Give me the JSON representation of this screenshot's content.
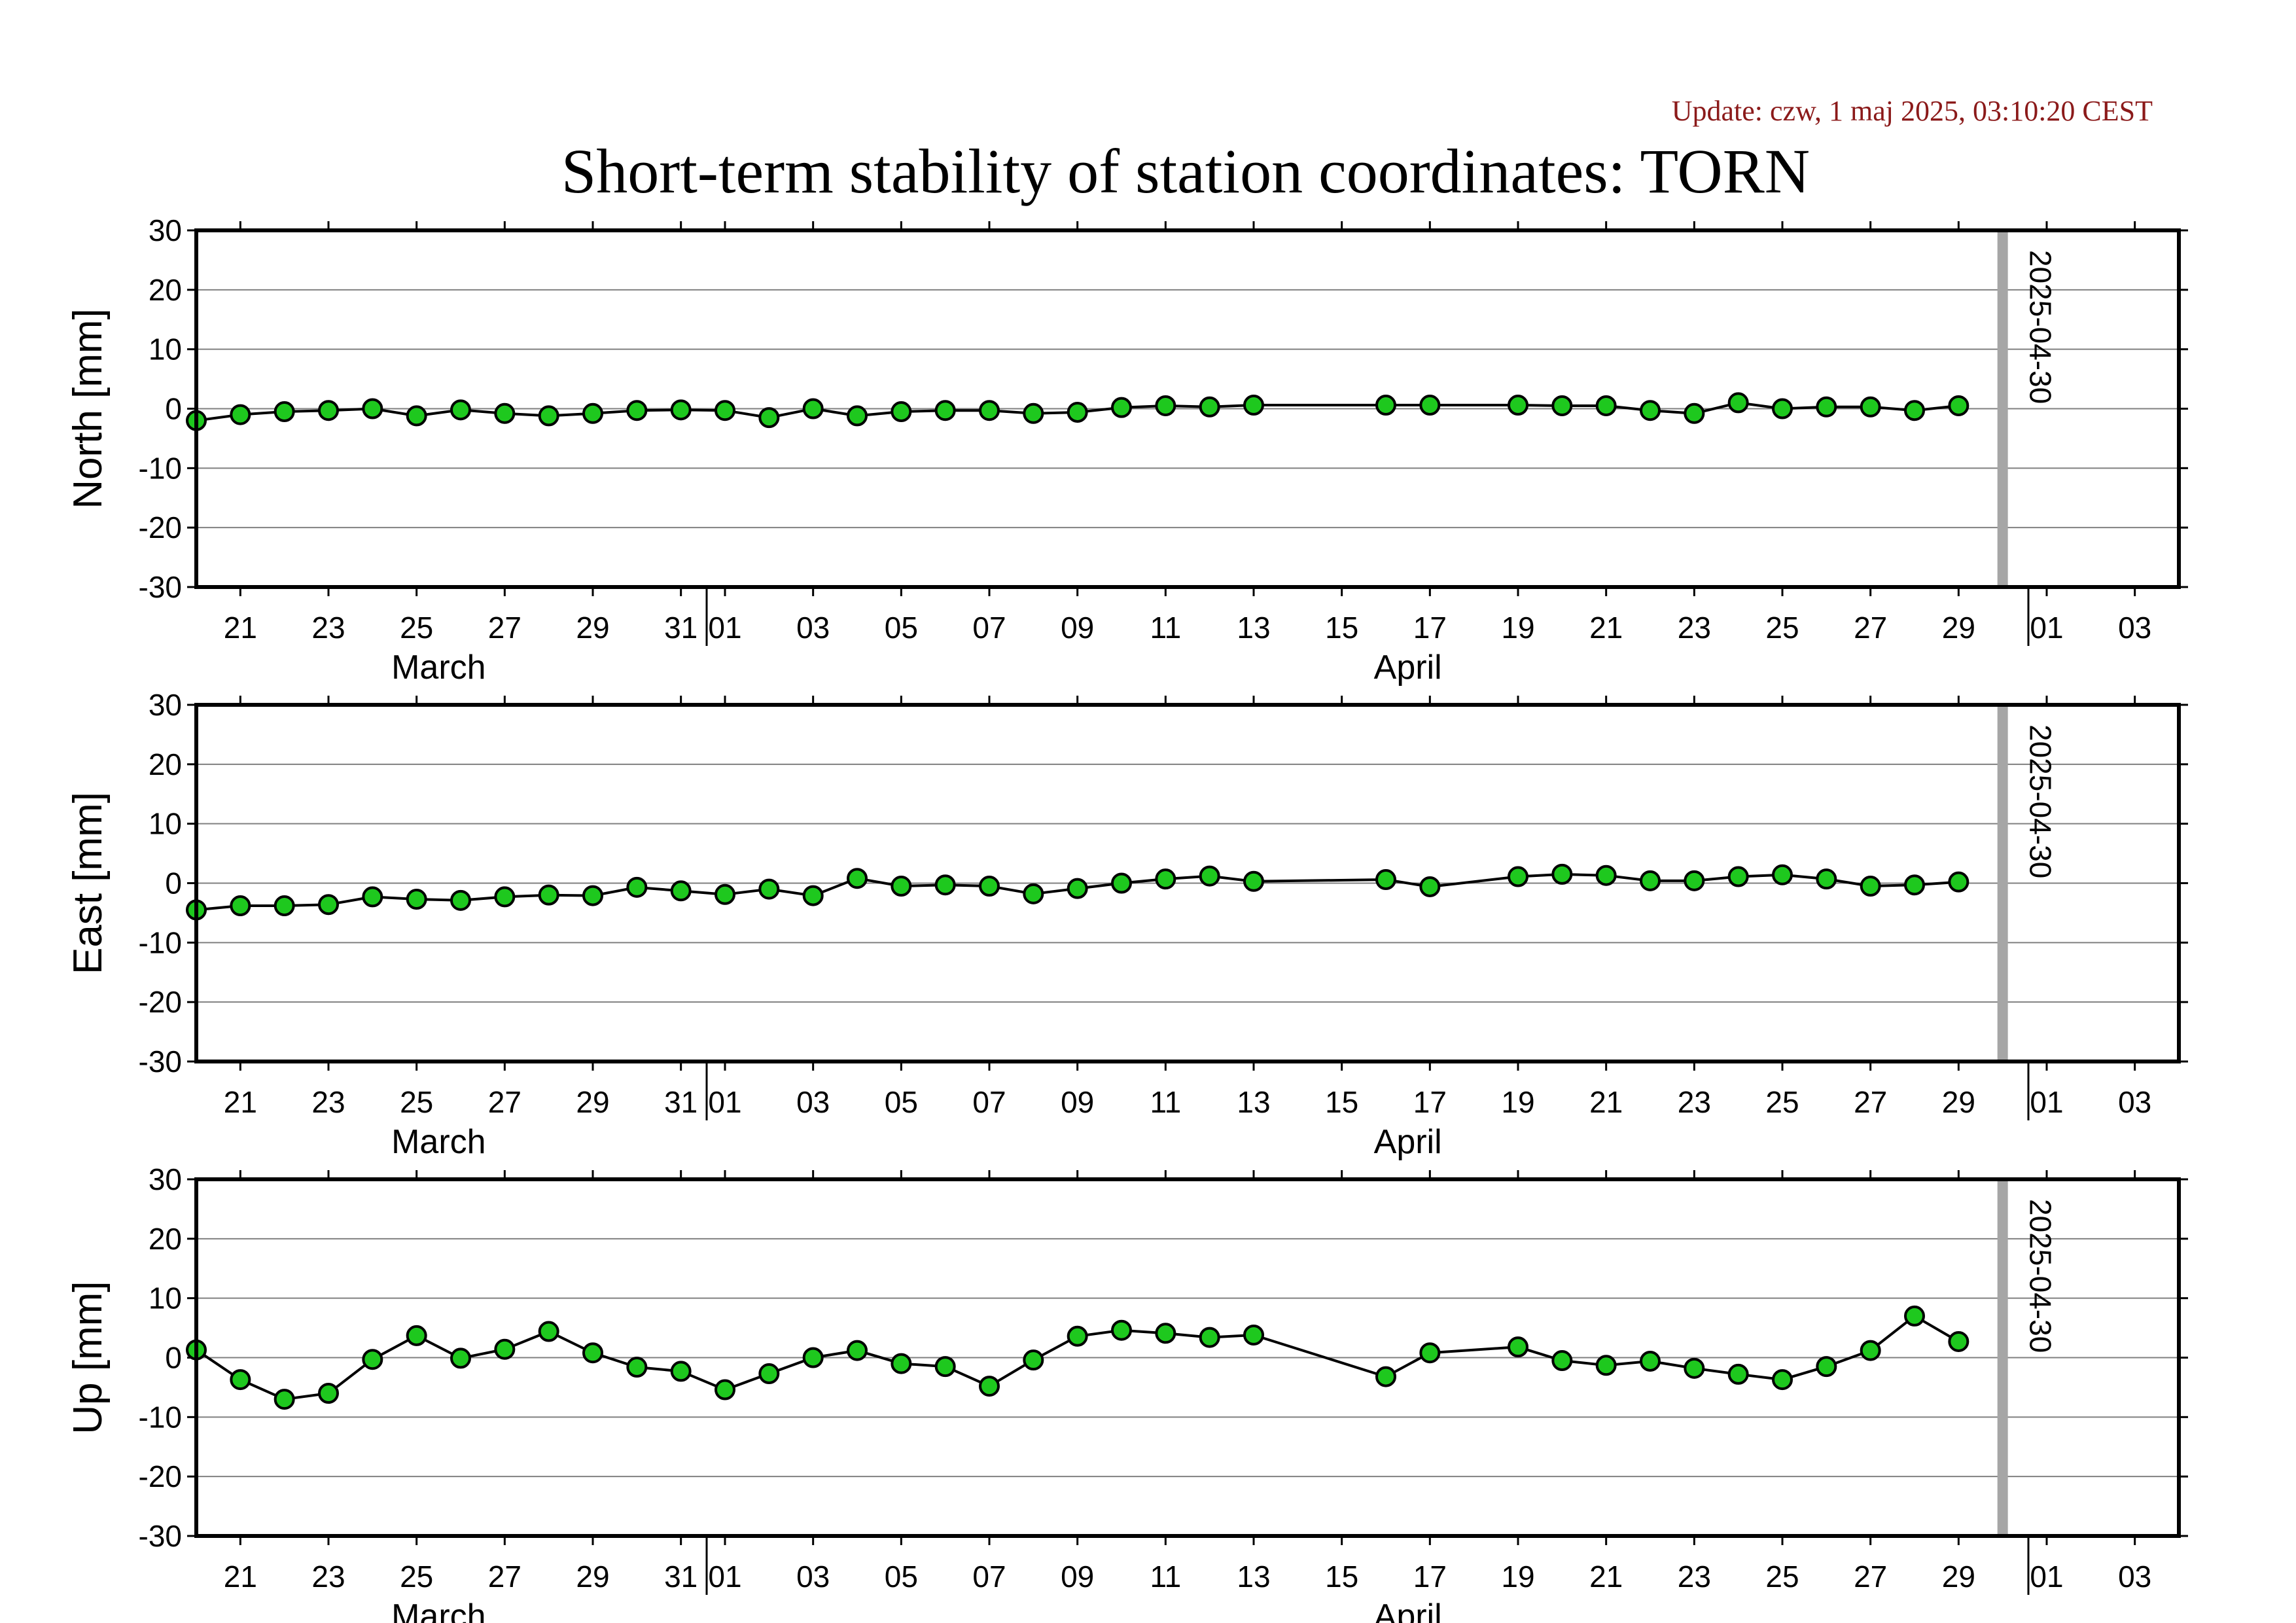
{
  "header": {
    "update": "Update: czw, 1 maj 2025, 03:10:20 CEST",
    "title": "Short-term stability of station coordinates: TORN"
  },
  "colors": {
    "point_fill": "#1ec81e",
    "line": "#000000",
    "marker_line": "#a6a6a6",
    "grid": "#808080"
  },
  "chart_data": {
    "type": "line",
    "x_unit": "date",
    "xlim": [
      "2025-03-20",
      "2025-05-04"
    ],
    "ylim": [
      -30,
      30
    ],
    "y_ticks": [
      30,
      20,
      10,
      0,
      -10,
      -20,
      -30
    ],
    "x_ticks": [
      {
        "date": "2025-03-21",
        "label": "21"
      },
      {
        "date": "2025-03-23",
        "label": "23"
      },
      {
        "date": "2025-03-25",
        "label": "25"
      },
      {
        "date": "2025-03-27",
        "label": "27"
      },
      {
        "date": "2025-03-29",
        "label": "29"
      },
      {
        "date": "2025-03-31",
        "label": "31"
      },
      {
        "date": "2025-04-01",
        "label": "01"
      },
      {
        "date": "2025-04-03",
        "label": "03"
      },
      {
        "date": "2025-04-05",
        "label": "05"
      },
      {
        "date": "2025-04-07",
        "label": "07"
      },
      {
        "date": "2025-04-09",
        "label": "09"
      },
      {
        "date": "2025-04-11",
        "label": "11"
      },
      {
        "date": "2025-04-13",
        "label": "13"
      },
      {
        "date": "2025-04-15",
        "label": "15"
      },
      {
        "date": "2025-04-17",
        "label": "17"
      },
      {
        "date": "2025-04-19",
        "label": "19"
      },
      {
        "date": "2025-04-21",
        "label": "21"
      },
      {
        "date": "2025-04-23",
        "label": "23"
      },
      {
        "date": "2025-04-25",
        "label": "25"
      },
      {
        "date": "2025-04-27",
        "label": "27"
      },
      {
        "date": "2025-04-29",
        "label": "29"
      },
      {
        "date": "2025-05-01",
        "label": "01"
      },
      {
        "date": "2025-05-03",
        "label": "03"
      }
    ],
    "months": [
      {
        "date": "2025-03-25.5",
        "label": "March"
      },
      {
        "date": "2025-04-16.5",
        "label": "April"
      }
    ],
    "month_boundaries": [
      "2025-04-01",
      "2025-05-01"
    ],
    "marker": {
      "date": "2025-04-30",
      "label": "2025-04-30"
    },
    "panels": [
      {
        "ylabel": "North [mm]",
        "points": [
          [
            "2025-03-20",
            -2.0
          ],
          [
            "2025-03-21",
            -1.0
          ],
          [
            "2025-03-22",
            -0.5
          ],
          [
            "2025-03-23",
            -0.3
          ],
          [
            "2025-03-24",
            0.0
          ],
          [
            "2025-03-25",
            -1.2
          ],
          [
            "2025-03-26",
            -0.2
          ],
          [
            "2025-03-27",
            -0.8
          ],
          [
            "2025-03-28",
            -1.2
          ],
          [
            "2025-03-29",
            -0.8
          ],
          [
            "2025-03-30",
            -0.3
          ],
          [
            "2025-03-31",
            -0.2
          ],
          [
            "2025-04-01",
            -0.3
          ],
          [
            "2025-04-02",
            -1.5
          ],
          [
            "2025-04-03",
            0.0
          ],
          [
            "2025-04-04",
            -1.2
          ],
          [
            "2025-04-05",
            -0.5
          ],
          [
            "2025-04-06",
            -0.3
          ],
          [
            "2025-04-07",
            -0.3
          ],
          [
            "2025-04-08",
            -0.8
          ],
          [
            "2025-04-09",
            -0.6
          ],
          [
            "2025-04-10",
            0.2
          ],
          [
            "2025-04-11",
            0.5
          ],
          [
            "2025-04-12",
            0.3
          ],
          [
            "2025-04-13",
            0.6
          ],
          [
            "2025-04-16",
            0.6
          ],
          [
            "2025-04-17",
            0.6
          ],
          [
            "2025-04-19",
            0.6
          ],
          [
            "2025-04-20",
            0.5
          ],
          [
            "2025-04-21",
            0.5
          ],
          [
            "2025-04-22",
            -0.3
          ],
          [
            "2025-04-23",
            -0.8
          ],
          [
            "2025-04-24",
            1.0
          ],
          [
            "2025-04-25",
            0.0
          ],
          [
            "2025-04-26",
            0.3
          ],
          [
            "2025-04-27",
            0.3
          ],
          [
            "2025-04-28",
            -0.3
          ],
          [
            "2025-04-29",
            0.5
          ]
        ]
      },
      {
        "ylabel": "East [mm]",
        "points": [
          [
            "2025-03-20",
            -4.5
          ],
          [
            "2025-03-21",
            -3.8
          ],
          [
            "2025-03-22",
            -3.8
          ],
          [
            "2025-03-23",
            -3.6
          ],
          [
            "2025-03-24",
            -2.3
          ],
          [
            "2025-03-25",
            -2.7
          ],
          [
            "2025-03-26",
            -2.9
          ],
          [
            "2025-03-27",
            -2.3
          ],
          [
            "2025-03-28",
            -2.0
          ],
          [
            "2025-03-29",
            -2.1
          ],
          [
            "2025-03-30",
            -0.7
          ],
          [
            "2025-03-31",
            -1.3
          ],
          [
            "2025-04-01",
            -1.9
          ],
          [
            "2025-04-02",
            -1.0
          ],
          [
            "2025-04-03",
            -2.1
          ],
          [
            "2025-04-04",
            0.8
          ],
          [
            "2025-04-05",
            -0.5
          ],
          [
            "2025-04-06",
            -0.3
          ],
          [
            "2025-04-07",
            -0.5
          ],
          [
            "2025-04-08",
            -1.8
          ],
          [
            "2025-04-09",
            -0.9
          ],
          [
            "2025-04-10",
            0.0
          ],
          [
            "2025-04-11",
            0.7
          ],
          [
            "2025-04-12",
            1.2
          ],
          [
            "2025-04-13",
            0.3
          ],
          [
            "2025-04-16",
            0.6
          ],
          [
            "2025-04-17",
            -0.6
          ],
          [
            "2025-04-19",
            1.1
          ],
          [
            "2025-04-20",
            1.5
          ],
          [
            "2025-04-21",
            1.3
          ],
          [
            "2025-04-22",
            0.4
          ],
          [
            "2025-04-23",
            0.4
          ],
          [
            "2025-04-24",
            1.1
          ],
          [
            "2025-04-25",
            1.4
          ],
          [
            "2025-04-26",
            0.7
          ],
          [
            "2025-04-27",
            -0.5
          ],
          [
            "2025-04-28",
            -0.3
          ],
          [
            "2025-04-29",
            0.2
          ]
        ]
      },
      {
        "ylabel": "Up [mm]",
        "points": [
          [
            "2025-03-20",
            1.3
          ],
          [
            "2025-03-21",
            -3.7
          ],
          [
            "2025-03-22",
            -7.0
          ],
          [
            "2025-03-23",
            -6.0
          ],
          [
            "2025-03-24",
            -0.3
          ],
          [
            "2025-03-25",
            3.7
          ],
          [
            "2025-03-26",
            -0.1
          ],
          [
            "2025-03-27",
            1.4
          ],
          [
            "2025-03-28",
            4.4
          ],
          [
            "2025-03-29",
            0.8
          ],
          [
            "2025-03-30",
            -1.6
          ],
          [
            "2025-03-31",
            -2.3
          ],
          [
            "2025-04-01",
            -5.4
          ],
          [
            "2025-04-02",
            -2.7
          ],
          [
            "2025-04-03",
            0.0
          ],
          [
            "2025-04-04",
            1.2
          ],
          [
            "2025-04-05",
            -1.0
          ],
          [
            "2025-04-06",
            -1.5
          ],
          [
            "2025-04-07",
            -4.8
          ],
          [
            "2025-04-08",
            -0.4
          ],
          [
            "2025-04-09",
            3.6
          ],
          [
            "2025-04-10",
            4.6
          ],
          [
            "2025-04-11",
            4.1
          ],
          [
            "2025-04-12",
            3.4
          ],
          [
            "2025-04-13",
            3.8
          ],
          [
            "2025-04-16",
            -3.2
          ],
          [
            "2025-04-17",
            0.8
          ],
          [
            "2025-04-19",
            1.8
          ],
          [
            "2025-04-20",
            -0.5
          ],
          [
            "2025-04-21",
            -1.3
          ],
          [
            "2025-04-22",
            -0.6
          ],
          [
            "2025-04-23",
            -1.8
          ],
          [
            "2025-04-24",
            -2.8
          ],
          [
            "2025-04-25",
            -3.7
          ],
          [
            "2025-04-26",
            -1.5
          ],
          [
            "2025-04-27",
            1.2
          ],
          [
            "2025-04-28",
            7.0
          ],
          [
            "2025-04-29",
            2.7
          ]
        ]
      }
    ]
  }
}
